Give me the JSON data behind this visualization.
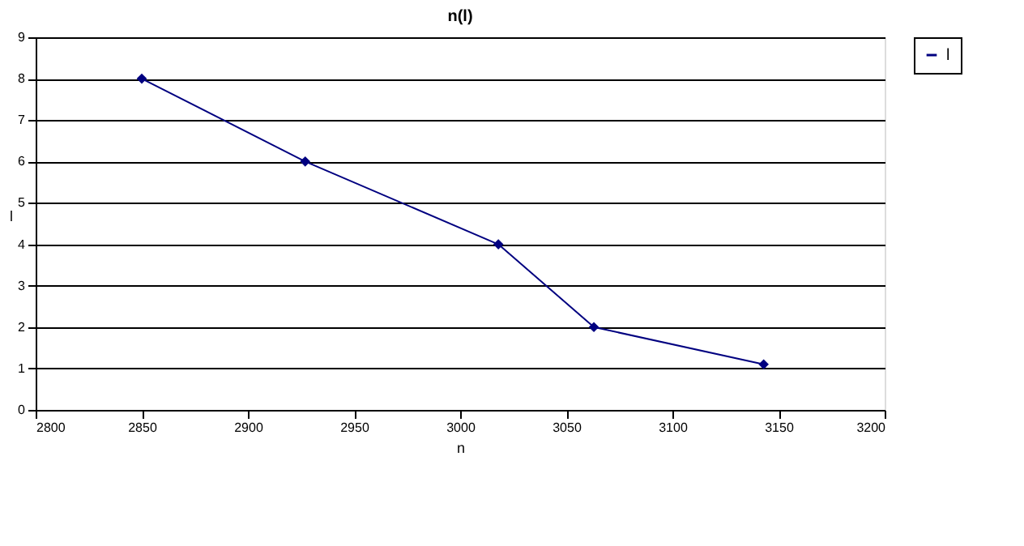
{
  "chart_data": {
    "type": "line",
    "title": "n(l)",
    "xlabel": "n",
    "ylabel": "l",
    "x": [
      2850,
      2927,
      3018,
      3063,
      3143
    ],
    "series": [
      {
        "name": "l",
        "color": "#000080",
        "values": [
          8,
          6,
          4,
          2,
          1.1
        ]
      }
    ],
    "xlim": [
      2800,
      3200
    ],
    "xticks": [
      2800,
      2850,
      2900,
      2950,
      3000,
      3050,
      3100,
      3150,
      3200
    ],
    "ylim": [
      0,
      9
    ],
    "yticks": [
      0,
      1,
      2,
      3,
      4,
      5,
      6,
      7,
      8,
      9
    ],
    "grid": "y",
    "legend": "right",
    "marker": "diamond",
    "line_style": "solid"
  }
}
